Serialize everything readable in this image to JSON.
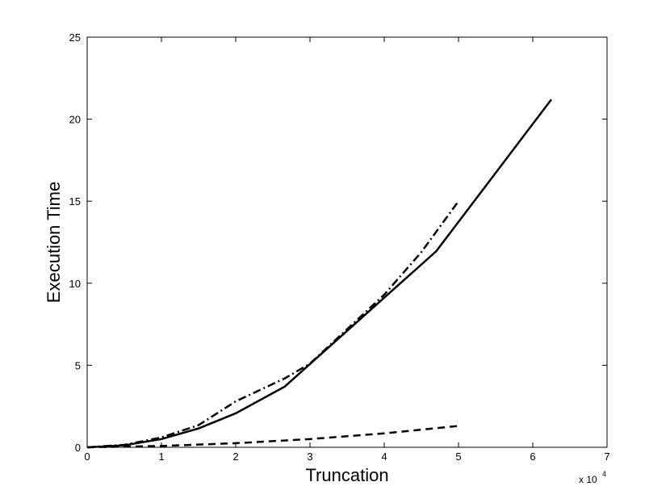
{
  "chart_data": {
    "type": "line",
    "xlabel": "Truncation",
    "ylabel": "Execution Time",
    "x_scale_base": "x 10",
    "x_scale_exponent": "4",
    "xlim": [
      0,
      7
    ],
    "xticks": [
      0,
      1,
      2,
      3,
      4,
      5,
      6,
      7
    ],
    "ylim": [
      0,
      25
    ],
    "yticks": [
      0,
      5,
      10,
      15,
      20,
      25
    ],
    "series": [
      {
        "color": "#000000",
        "dash": "solid",
        "x": [
          0,
          0.5,
          1,
          1.5,
          2,
          2.66,
          4.7,
          6.25
        ],
        "values": [
          0,
          0.12,
          0.5,
          1.15,
          2.07,
          3.7,
          11.95,
          21.2
        ]
      },
      {
        "color": "#000000",
        "dash": "dashdot",
        "x": [
          0,
          0.5,
          1,
          1.5,
          2,
          2.66,
          3,
          4,
          4.5,
          5
        ],
        "values": [
          0,
          0.15,
          0.6,
          1.35,
          2.8,
          4.2,
          5.1,
          9.3,
          11.9,
          15.0
        ]
      },
      {
        "color": "#000000",
        "dash": "dashed",
        "x": [
          0,
          1,
          2,
          3,
          4,
          5
        ],
        "values": [
          0,
          0.08,
          0.25,
          0.5,
          0.85,
          1.3
        ]
      }
    ]
  }
}
